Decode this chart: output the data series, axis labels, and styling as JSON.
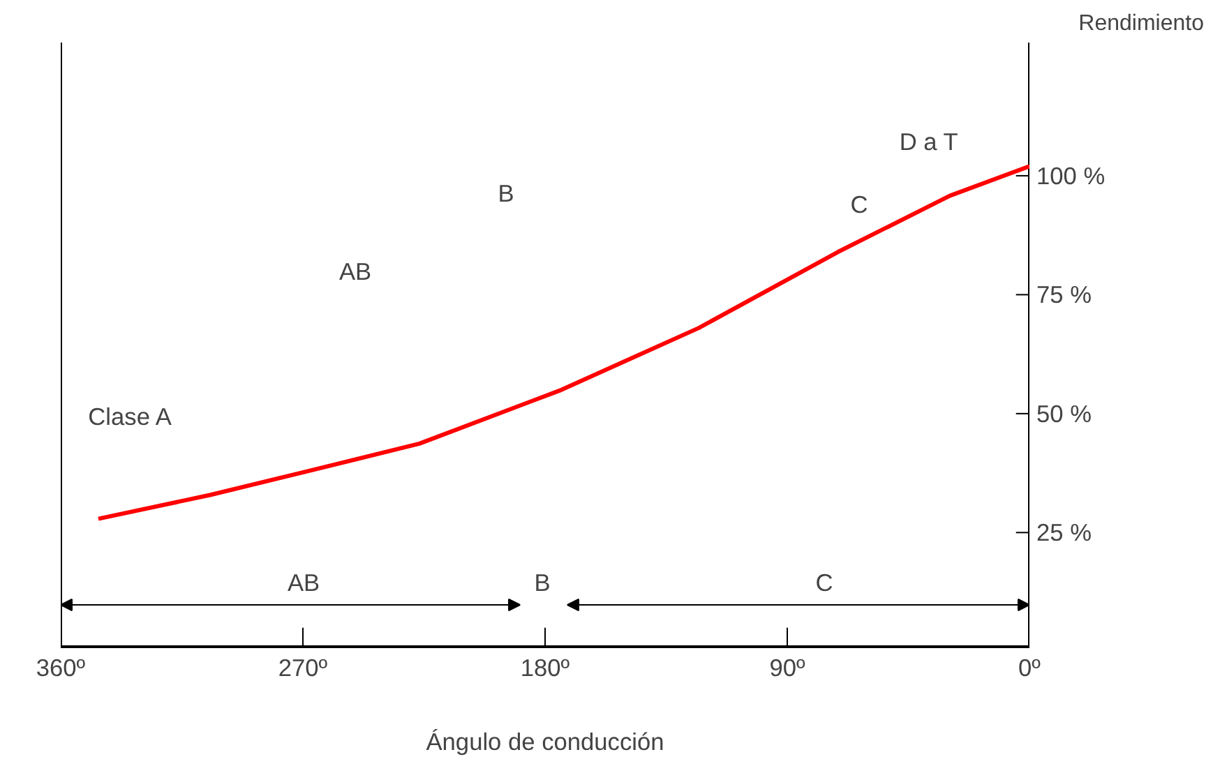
{
  "chart_data": {
    "type": "line",
    "xlabel": "Ángulo de conducción",
    "ylabel": "Rendimiento",
    "x": [
      346,
      304.5,
      268.2,
      226.7,
      174.8,
      122.9,
      71.1,
      29.6,
      0
    ],
    "series": [
      {
        "color": "#ff0000",
        "values": [
          27.9,
          32.9,
          37.9,
          43.7,
          54.8,
          68,
          84,
          95.8,
          102
        ]
      }
    ],
    "xlim": [
      360,
      0
    ],
    "ylim": [
      1,
      128
    ],
    "xticks": [
      {
        "value": 360,
        "label": "360º"
      },
      {
        "value": 270,
        "label": "270º"
      },
      {
        "value": 180,
        "label": "180º"
      },
      {
        "value": 90,
        "label": "90º"
      },
      {
        "value": 0,
        "label": "0º"
      }
    ],
    "yticks": [
      {
        "value": 25,
        "label": "25 %"
      },
      {
        "value": 50,
        "label": "50 %"
      },
      {
        "value": 75,
        "label": "75 %"
      },
      {
        "value": 100,
        "label": "100 %"
      }
    ],
    "annotations": [
      "AB",
      "B",
      "C",
      "Clase A",
      "AB",
      "B",
      "C",
      "D a T"
    ],
    "grid": false,
    "marker": "none",
    "line_style": "solid"
  }
}
